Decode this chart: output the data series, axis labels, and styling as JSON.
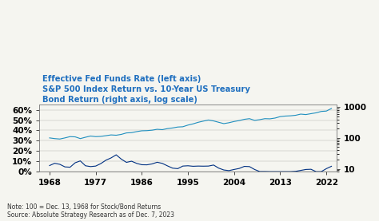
{
  "title_line1": "Effective Fed Funds Rate (left axis)",
  "title_line2": "S&P 500 Index Return vs. 10-Year US Treasury",
  "title_line3": "Bond Return (right axis, log scale)",
  "note": "Note: 100 = Dec. 13, 1968 for Stock/Bond Returns",
  "source": "Source: Absolute Strategy Research as of Dec. 7, 2023",
  "title_color": "#1F6FBF",
  "bg_color": "#F5F5F0",
  "line1_color": "#003082",
  "line2_color": "#1F8FBF",
  "x_ticks": [
    1968,
    1977,
    1986,
    1995,
    2004,
    2013,
    2022
  ],
  "yleft_ticks": [
    0,
    10,
    20,
    30,
    40,
    50,
    60
  ],
  "yright_ticks": [
    10,
    100,
    1000
  ],
  "yleft_labels": [
    "0%",
    "10%",
    "20%",
    "30%",
    "40%",
    "50%",
    "60%"
  ],
  "yright_labels": [
    "10",
    "100",
    "1000"
  ],
  "fed_funds_years": [
    1968,
    1969,
    1970,
    1971,
    1972,
    1973,
    1974,
    1975,
    1976,
    1977,
    1978,
    1979,
    1980,
    1981,
    1982,
    1983,
    1984,
    1985,
    1986,
    1987,
    1988,
    1989,
    1990,
    1991,
    1992,
    1993,
    1994,
    1995,
    1996,
    1997,
    1998,
    1999,
    2000,
    2001,
    2002,
    2003,
    2004,
    2005,
    2006,
    2007,
    2008,
    2009,
    2010,
    2011,
    2012,
    2013,
    2014,
    2015,
    2016,
    2017,
    2018,
    2019,
    2020,
    2021,
    2022,
    2023
  ],
  "fed_funds_values": [
    6.0,
    8.2,
    7.2,
    4.7,
    4.4,
    8.7,
    10.5,
    5.8,
    5.0,
    5.5,
    7.9,
    11.2,
    13.4,
    16.4,
    12.2,
    9.1,
    10.2,
    8.1,
    6.8,
    6.7,
    7.6,
    9.2,
    8.1,
    5.7,
    3.5,
    3.0,
    5.5,
    5.8,
    5.3,
    5.5,
    5.4,
    5.5,
    6.5,
    3.5,
    1.7,
    1.1,
    2.2,
    3.2,
    5.2,
    5.0,
    2.2,
    0.2,
    0.2,
    0.1,
    0.1,
    0.1,
    0.1,
    0.1,
    0.4,
    1.3,
    2.2,
    2.4,
    0.1,
    0.1,
    3.0,
    5.3
  ],
  "sp_years": [
    1968,
    1969,
    1970,
    1971,
    1972,
    1973,
    1974,
    1975,
    1976,
    1977,
    1978,
    1979,
    1980,
    1981,
    1982,
    1983,
    1984,
    1985,
    1986,
    1987,
    1988,
    1989,
    1990,
    1991,
    1992,
    1993,
    1994,
    1995,
    1996,
    1997,
    1998,
    1999,
    2000,
    2001,
    2002,
    2003,
    2004,
    2005,
    2006,
    2007,
    2008,
    2009,
    2010,
    2011,
    2012,
    2013,
    2014,
    2015,
    2016,
    2017,
    2018,
    2019,
    2020,
    2021,
    2022,
    2023
  ],
  "sp_values": [
    100,
    95,
    92,
    100,
    110,
    108,
    95,
    105,
    115,
    110,
    112,
    118,
    125,
    122,
    130,
    145,
    148,
    160,
    170,
    172,
    178,
    190,
    185,
    200,
    210,
    225,
    230,
    260,
    285,
    320,
    350,
    380,
    355,
    320,
    290,
    310,
    340,
    365,
    400,
    420,
    370,
    390,
    420,
    415,
    440,
    490,
    510,
    520,
    540,
    590,
    570,
    610,
    650,
    720,
    740,
    900
  ]
}
